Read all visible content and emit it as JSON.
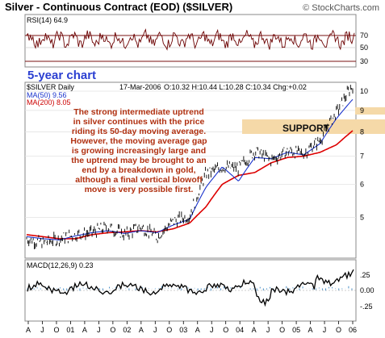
{
  "header": {
    "title": "Silver - Continuous Contract (EOD) ($SILVER)",
    "copyright": "© StockCharts.com",
    "note_5yr": "5-year chart"
  },
  "rsi": {
    "label": "RSI(14) 64.9",
    "levels": [
      "70",
      "50",
      "30"
    ]
  },
  "price": {
    "symbol_label": "$SILVER Daily",
    "date_label": "17-Mar-2006",
    "ohlc_label": "O:10.32 H:10.44 L:10.28 C:10.34 Chg:+0.02",
    "ma50_label": "MA(50) 9.56",
    "ma200_label": "MA(200) 8.05",
    "y_ticks": [
      "10",
      "9",
      "8",
      "7",
      "6",
      "5"
    ],
    "annotation": [
      "The strong intermediate uptrend",
      "in silver continues with the price",
      "riding its 50-day moving average.",
      "However, the moving average gap",
      "is growing increasingly large and",
      "the uptrend may be brought to an",
      "end by a breakdown in gold,",
      "although a final vertical blowoff",
      "move is very possible first."
    ],
    "support_label": "SUPPORT"
  },
  "macd": {
    "label": "MACD(12,26,9) 0.23",
    "y_ticks": [
      ".25",
      "0.00",
      "-.25"
    ]
  },
  "x_axis": {
    "labels": [
      "A",
      "J",
      "O",
      "01",
      "A",
      "J",
      "O",
      "02",
      "A",
      "J",
      "O",
      "03",
      "A",
      "J",
      "O",
      "04",
      "A",
      "J",
      "O",
      "05",
      "A",
      "J",
      "O",
      "06"
    ]
  },
  "colors": {
    "price": "#000000",
    "ma50": "#1a33cc",
    "ma200": "#dd0000",
    "rsi": "#6b0000",
    "macd": "#000000",
    "histogram": "#4a90c8",
    "support_band": "#f5d9a8",
    "grid": "#cccccc"
  },
  "chart_data": [
    {
      "type": "line",
      "title": "Silver - Continuous Contract (EOD) ($SILVER)",
      "x": [
        "2001-04",
        "2001-07",
        "2001-10",
        "2002-01",
        "2002-04",
        "2002-07",
        "2002-10",
        "2003-01",
        "2003-04",
        "2003-07",
        "2003-10",
        "2004-01",
        "2004-04",
        "2004-07",
        "2004-10",
        "2005-01",
        "2005-04",
        "2005-07",
        "2005-10",
        "2006-01",
        "2006-03"
      ],
      "series": [
        {
          "name": "$SILVER Daily",
          "values": [
            4.45,
            4.35,
            4.45,
            4.55,
            4.6,
            4.75,
            4.55,
            4.75,
            4.5,
            4.9,
            5.05,
            6.35,
            6.6,
            6.55,
            7.2,
            6.85,
            7.2,
            7.1,
            7.65,
            8.9,
            10.34
          ]
        },
        {
          "name": "MA(50) 9.56",
          "values": [
            4.5,
            4.45,
            4.42,
            4.52,
            4.6,
            4.65,
            4.58,
            4.65,
            4.6,
            4.8,
            4.95,
            5.9,
            6.6,
            6.1,
            6.95,
            6.9,
            7.15,
            7.05,
            7.5,
            8.6,
            9.56
          ]
        },
        {
          "name": "MA(200) 8.05",
          "values": [
            4.55,
            4.5,
            4.45,
            4.45,
            4.55,
            4.6,
            4.62,
            4.65,
            4.62,
            4.7,
            4.85,
            5.3,
            6.0,
            6.3,
            6.4,
            6.75,
            6.95,
            7.0,
            7.15,
            7.45,
            8.05
          ]
        }
      ],
      "ylim": [
        4.0,
        10.5
      ],
      "y_scale": "log",
      "support_band": [
        8.2,
        8.6
      ]
    },
    {
      "type": "line",
      "title": "RSI(14) 64.9",
      "series": [
        {
          "name": "RSI(14) 64.9",
          "last_value": 64.9
        }
      ],
      "ylim": [
        0,
        100
      ],
      "levels": [
        70,
        50,
        30
      ]
    },
    {
      "type": "line",
      "title": "MACD(12,26,9) 0.23",
      "series": [
        {
          "name": "MACD(12,26,9) 0.23",
          "last_value": 0.23
        }
      ],
      "ylim": [
        -0.4,
        0.35
      ]
    }
  ]
}
